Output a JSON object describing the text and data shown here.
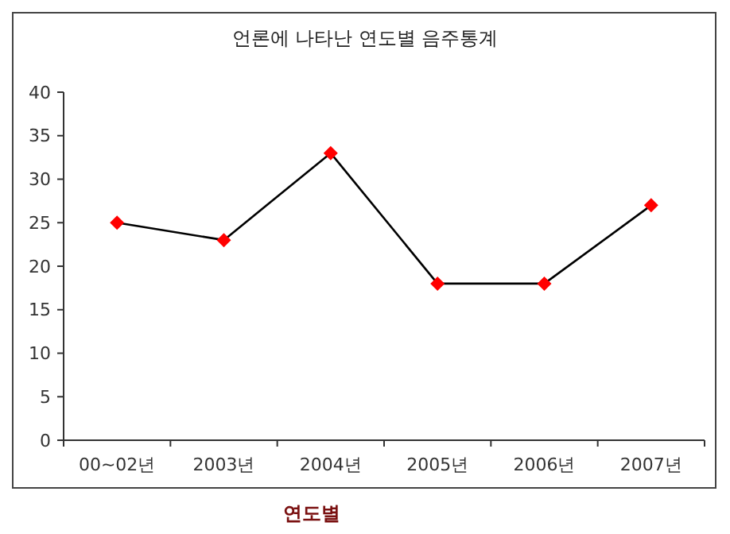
{
  "chart_data": {
    "type": "line",
    "title": "언론에 나타난 연도별 음주통계",
    "xlabel": "연도별",
    "categories": [
      "00~02년",
      "2003년",
      "2004년",
      "2005년",
      "2006년",
      "2007년"
    ],
    "series": [
      {
        "color": "#000000",
        "values": [
          25,
          23,
          33,
          18,
          18,
          27
        ]
      }
    ],
    "marker": "diamond",
    "ylim": [
      0,
      40
    ],
    "yticks": [
      0,
      5,
      10,
      15,
      20,
      25,
      30,
      35,
      40
    ],
    "grid": false
  }
}
